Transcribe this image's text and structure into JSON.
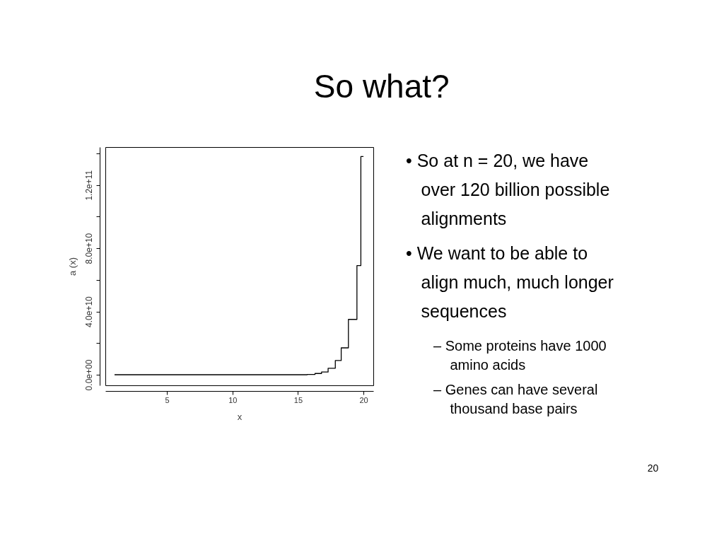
{
  "chart_data": {
    "type": "step",
    "title": "So what?",
    "xlabel": "x",
    "ylabel": "a (x)",
    "x": [
      1,
      15.7,
      16.3,
      16.8,
      17.3,
      17.85,
      18.3,
      18.85,
      19.5,
      19.8,
      20
    ],
    "series": [
      {
        "color": "#000000",
        "values": [
          0,
          200000000,
          800000000,
          1700000000,
          4100000000,
          9000000000,
          17000000000,
          35000000000,
          69000000000,
          138000000000,
          138000000000
        ]
      }
    ],
    "xlim": [
      0.3,
      20.75
    ],
    "xticks": [
      5,
      10,
      15,
      20
    ],
    "ylim": [
      -6700000000,
      144000000000
    ],
    "yticks": [
      {
        "value": 0,
        "label": "0.0e+00"
      },
      {
        "value": 20000000000,
        "label": null
      },
      {
        "value": 40000000000,
        "label": "4.0e+10"
      },
      {
        "value": 60000000000,
        "label": null
      },
      {
        "value": 80000000000,
        "label": "8.0e+10"
      },
      {
        "value": 100000000000,
        "label": null
      },
      {
        "value": 120000000000,
        "label": "1.2e+11"
      },
      {
        "value": 140000000000,
        "label": null
      }
    ],
    "grid": false,
    "marker": "none",
    "line_style": "solid",
    "annotations": [
      "• So at n = 20, we have over 120 billion possible alignments",
      "• We want to be able to align much, much longer sequences",
      "– Some proteins have 1000 amino acids",
      "– Genes can have several thousand base pairs",
      "20"
    ]
  }
}
